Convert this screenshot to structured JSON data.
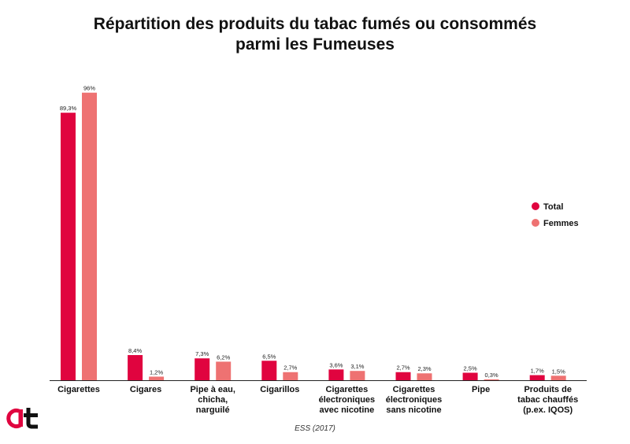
{
  "chart_data": {
    "type": "bar",
    "title_lines": [
      "Répartition des produits du tabac fumés ou consommés",
      "parmi les  Fumeuses"
    ],
    "categories": [
      [
        "Cigarettes"
      ],
      [
        "Cigares"
      ],
      [
        "Pipe à eau,",
        "chicha,",
        "narguilé"
      ],
      [
        "Cigarillos"
      ],
      [
        "Cigarettes",
        "électroniques",
        "avec nicotine"
      ],
      [
        "Cigarettes",
        "électroniques",
        "sans nicotine"
      ],
      [
        "Pipe"
      ],
      [
        "Produits de",
        "tabac chauffés",
        "(p.ex. IQOS)"
      ]
    ],
    "series": [
      {
        "name": "Total",
        "color": "#e0043f",
        "values": [
          89.3,
          8.4,
          7.3,
          6.5,
          3.6,
          2.7,
          2.5,
          1.7
        ],
        "labels": [
          "89,3%",
          "8,4%",
          "7,3%",
          "6,5%",
          "3,6%",
          "2,7%",
          "2,5%",
          "1,7%"
        ]
      },
      {
        "name": "Femmes",
        "color": "#ee7272",
        "values": [
          96,
          1.2,
          6.2,
          2.7,
          3.1,
          2.3,
          0.3,
          1.5
        ],
        "labels": [
          "96%",
          "1,2%",
          "6,2%",
          "2,7%",
          "3,1%",
          "2,3%",
          "0,3%",
          "1,5%"
        ]
      }
    ],
    "ylim": [
      0,
      100
    ],
    "grid": false,
    "legend_position": "right"
  },
  "source": "ESS (2017)",
  "logo": {
    "name": "at-logo-icon",
    "colors": [
      "#e0043f",
      "#111111"
    ]
  }
}
